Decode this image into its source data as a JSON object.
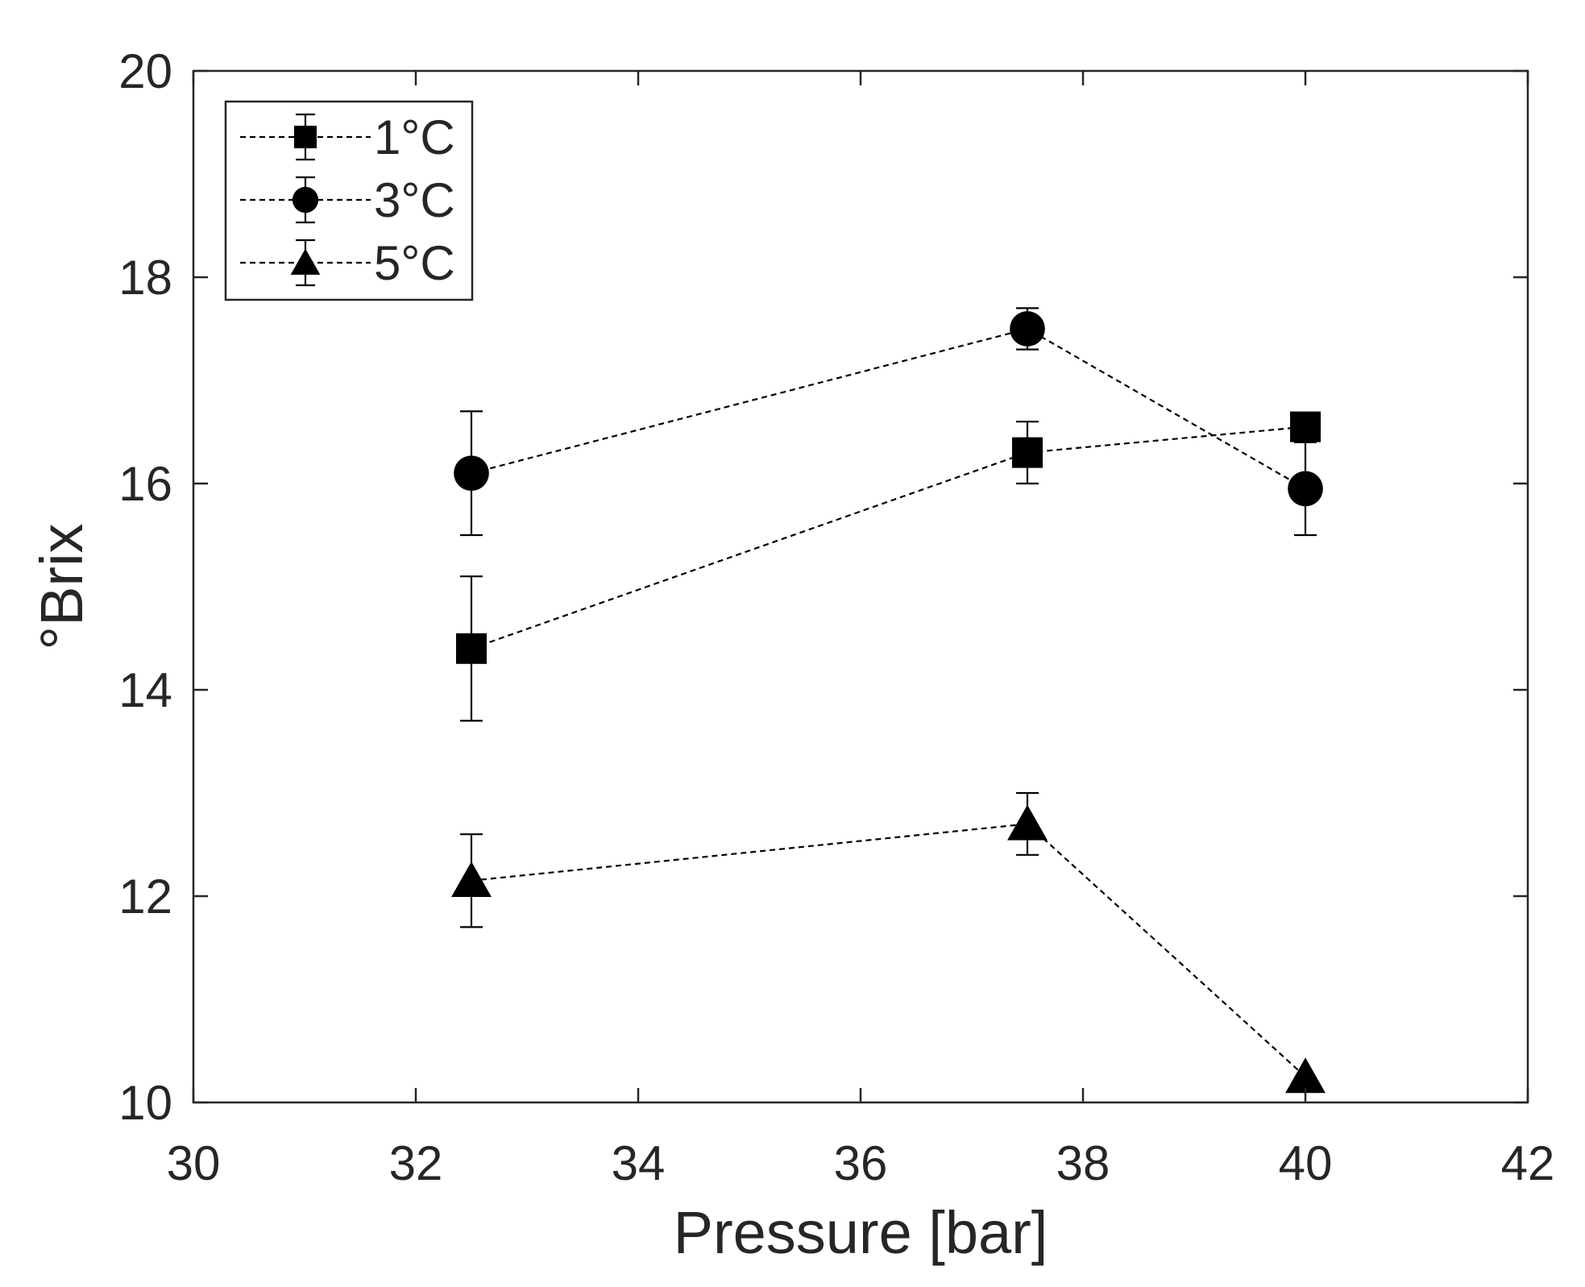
{
  "chart_data": {
    "type": "scatter",
    "title": "",
    "xlabel": "Pressure [bar]",
    "ylabel": "°Brix",
    "xlim": [
      30,
      42
    ],
    "ylim": [
      10,
      20
    ],
    "xticks": [
      30,
      32,
      34,
      36,
      38,
      40,
      42
    ],
    "yticks": [
      10,
      12,
      14,
      16,
      18,
      20
    ],
    "grid": false,
    "legend_position": "top-left",
    "series": [
      {
        "name": "1°C",
        "marker": "square",
        "line": "dashed",
        "x": [
          32.5,
          37.5,
          40
        ],
        "y": [
          14.4,
          16.3,
          16.55
        ],
        "err_low": [
          0.7,
          0.3,
          0
        ],
        "err_high": [
          0.7,
          0.3,
          0
        ]
      },
      {
        "name": "3°C",
        "marker": "circle",
        "line": "dashed",
        "x": [
          32.5,
          37.5,
          40
        ],
        "y": [
          16.1,
          17.5,
          15.95
        ],
        "err_low": [
          0.6,
          0.2,
          0.45
        ],
        "err_high": [
          0.6,
          0.2,
          0.45
        ]
      },
      {
        "name": "5°C",
        "marker": "triangle",
        "line": "dashed",
        "x": [
          32.5,
          37.5,
          40
        ],
        "y": [
          12.15,
          12.7,
          10.25
        ],
        "err_low": [
          0.45,
          0.3,
          0
        ],
        "err_high": [
          0.45,
          0.3,
          0
        ]
      }
    ]
  }
}
